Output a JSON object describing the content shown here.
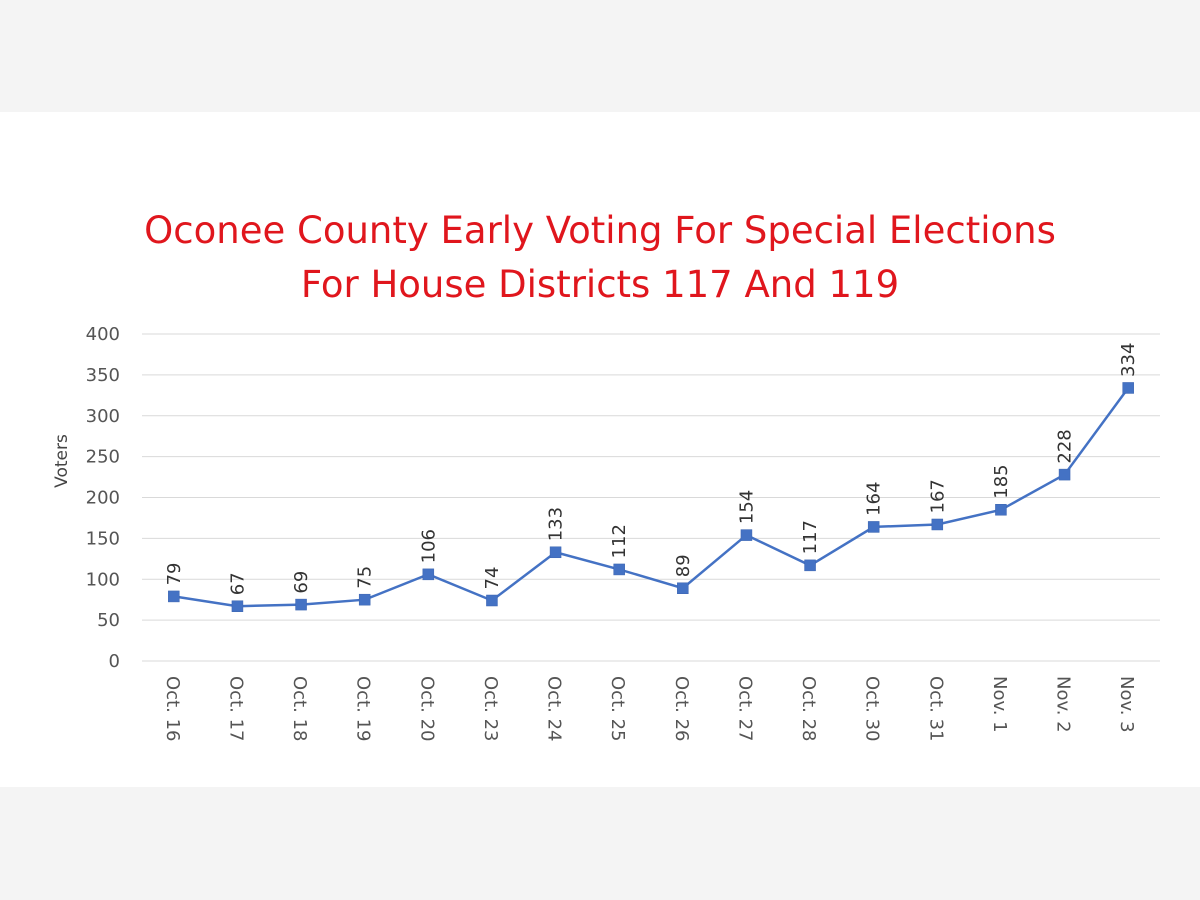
{
  "chart_data": {
    "type": "line",
    "title": "Oconee County Early Voting For Special Elections",
    "subtitle": "For House Districts 117 And 119",
    "xlabel": "",
    "ylabel": "Voters",
    "ylim": [
      0,
      400
    ],
    "yticks": [
      "0",
      "50",
      "100",
      "150",
      "200",
      "250",
      "300",
      "350",
      "400"
    ],
    "grid": true,
    "categories": [
      "Oct. 16",
      "Oct. 17",
      "Oct. 18",
      "Oct. 19",
      "Oct. 20",
      "Oct. 23",
      "Oct. 24",
      "Oct. 25",
      "Oct. 26",
      "Oct. 27",
      "Oct. 28",
      "Oct. 30",
      "Oct. 31",
      "Nov. 1",
      "Nov. 2",
      "Nov. 3"
    ],
    "series": [
      {
        "values": [
          79,
          67,
          69,
          75,
          106,
          74,
          133,
          112,
          89,
          154,
          117,
          164,
          167,
          185,
          228,
          334
        ],
        "color": "#4472c4",
        "marker": "square",
        "data_labels": true
      }
    ]
  }
}
